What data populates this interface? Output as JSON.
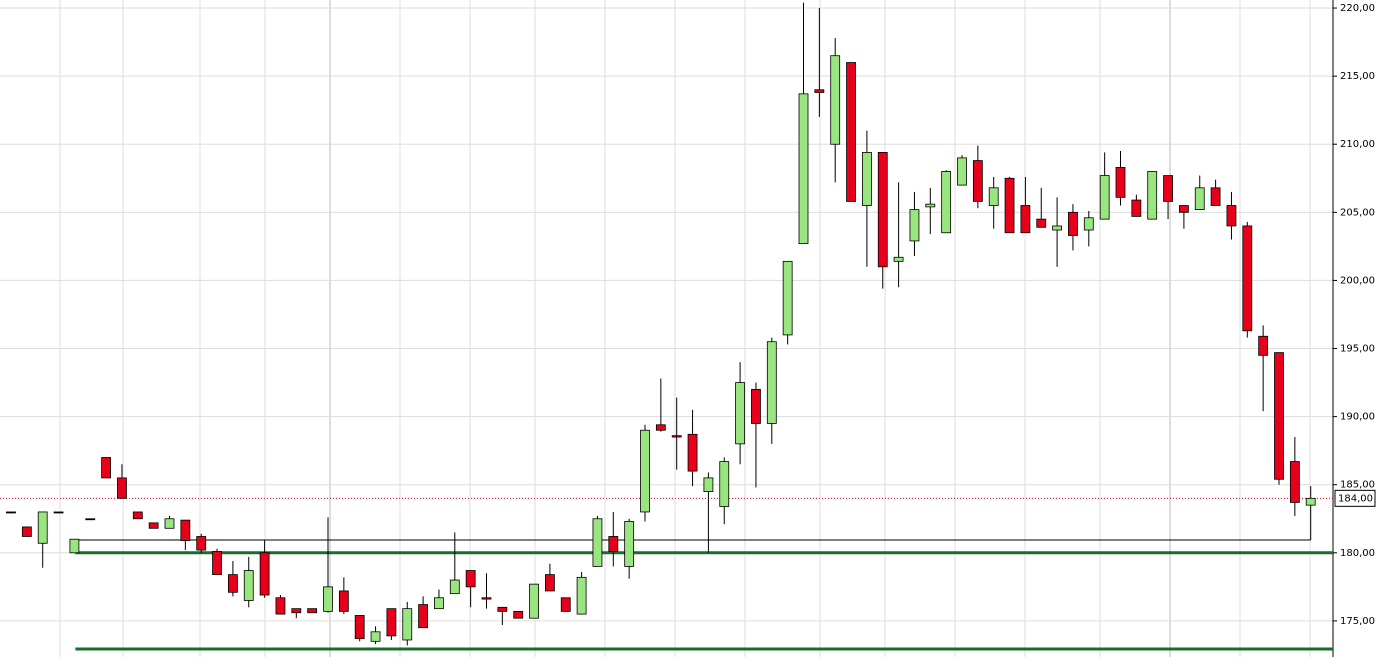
{
  "chart_data": {
    "type": "candlestick",
    "open": [
      183.0,
      181.9,
      180.7,
      183.0,
      180.0,
      182.5,
      187.0,
      185.5,
      183.0,
      182.2,
      181.8,
      182.4,
      181.2,
      180.1,
      178.4,
      176.5,
      180.0,
      176.7,
      175.9,
      175.9,
      175.7,
      177.2,
      175.4,
      173.5,
      175.9,
      173.6,
      176.2,
      175.9,
      177.0,
      178.7,
      176.7,
      176.0,
      175.7,
      175.2,
      178.4,
      176.7,
      175.5,
      179.0,
      181.2,
      179.0,
      183.0,
      189.4,
      188.6,
      188.7,
      184.5,
      183.4,
      188.0,
      192.0,
      189.5,
      196.0,
      202.7,
      214.0,
      210.0,
      216.0,
      205.5,
      209.4,
      201.4,
      202.9,
      205.4,
      203.5,
      207.0,
      208.8,
      205.5,
      207.5,
      205.5,
      204.5,
      203.7,
      205.0,
      203.7,
      204.5,
      208.3,
      205.9,
      204.5,
      207.7,
      205.5,
      205.2,
      206.8,
      205.5,
      204.0,
      195.9,
      194.7,
      186.7,
      183.5
    ],
    "high": [
      183.0,
      181.9,
      183.0,
      183.0,
      181.0,
      182.5,
      187.0,
      186.5,
      183.0,
      182.2,
      182.7,
      182.4,
      181.4,
      180.3,
      179.4,
      179.7,
      180.9,
      176.9,
      175.9,
      175.9,
      182.6,
      178.2,
      175.4,
      174.6,
      175.9,
      176.4,
      176.8,
      177.3,
      181.5,
      178.7,
      178.5,
      176.0,
      175.7,
      177.7,
      179.2,
      176.7,
      178.6,
      182.7,
      183.0,
      182.5,
      189.4,
      192.8,
      191.4,
      190.5,
      185.9,
      187.0,
      194.0,
      192.5,
      195.8,
      201.4,
      220.4,
      220.0,
      217.8,
      216.0,
      211.0,
      209.4,
      207.2,
      206.5,
      206.8,
      208.1,
      209.2,
      209.9,
      207.6,
      207.6,
      207.6,
      206.8,
      206.1,
      205.6,
      205.1,
      209.4,
      209.5,
      206.3,
      208.0,
      207.7,
      205.5,
      207.7,
      207.4,
      206.5,
      204.3,
      196.7,
      194.7,
      188.5,
      184.9
    ],
    "low": [
      183.0,
      181.2,
      178.9,
      183.0,
      180.0,
      182.5,
      185.5,
      184.0,
      182.5,
      181.8,
      181.8,
      180.2,
      180.0,
      178.4,
      176.8,
      176.0,
      176.7,
      175.5,
      175.2,
      175.6,
      175.6,
      175.5,
      173.5,
      173.3,
      173.6,
      173.2,
      174.5,
      175.9,
      177.0,
      176.0,
      175.9,
      174.7,
      175.2,
      175.2,
      177.2,
      175.7,
      175.5,
      179.0,
      179.0,
      178.1,
      182.3,
      188.9,
      186.1,
      184.9,
      180.0,
      182.1,
      186.5,
      184.8,
      188.0,
      195.3,
      202.7,
      212.0,
      207.2,
      205.8,
      201.0,
      199.4,
      199.5,
      201.8,
      203.4,
      203.5,
      207.0,
      205.3,
      203.8,
      203.5,
      203.5,
      203.9,
      201.0,
      202.2,
      202.5,
      204.5,
      205.5,
      204.7,
      204.5,
      204.5,
      203.8,
      205.2,
      205.5,
      203.0,
      195.8,
      190.4,
      185.0,
      182.7,
      183.5
    ],
    "close": [
      183.0,
      181.2,
      183.0,
      183.0,
      181.0,
      182.5,
      185.5,
      184.0,
      182.5,
      181.8,
      182.5,
      180.9,
      180.2,
      178.4,
      177.1,
      178.7,
      176.9,
      175.5,
      175.6,
      175.6,
      177.5,
      175.7,
      173.7,
      174.2,
      173.9,
      175.9,
      174.5,
      176.7,
      178.0,
      177.5,
      176.6,
      175.7,
      175.2,
      177.7,
      177.2,
      175.7,
      178.2,
      182.5,
      180.1,
      182.3,
      189.0,
      189.0,
      188.5,
      186.0,
      185.5,
      186.7,
      192.5,
      189.5,
      195.5,
      201.4,
      213.7,
      213.8,
      216.5,
      205.8,
      209.4,
      201.0,
      201.7,
      205.2,
      205.6,
      208.0,
      209.0,
      205.8,
      206.8,
      203.5,
      203.5,
      203.9,
      204.0,
      203.3,
      204.6,
      207.7,
      206.1,
      204.7,
      208.0,
      205.8,
      205.0,
      206.8,
      205.5,
      204.0,
      196.3,
      194.5,
      185.4,
      183.7,
      184.0
    ],
    "up_color": "#99e57f",
    "down_color": "#e8001a",
    "ylim": [
      172.35,
      220.59
    ],
    "yticks": [
      {
        "value": 175,
        "label": "175,00"
      },
      {
        "value": 180,
        "label": "180,00"
      },
      {
        "value": 185,
        "label": "185,00"
      },
      {
        "value": 190,
        "label": "190,00"
      },
      {
        "value": 195,
        "label": "195,00"
      },
      {
        "value": 200,
        "label": "200,00"
      },
      {
        "value": 205,
        "label": "205,00"
      },
      {
        "value": 210,
        "label": "210,00"
      },
      {
        "value": 215,
        "label": "215,00"
      },
      {
        "value": 220,
        "label": "220,00"
      }
    ],
    "grid": true,
    "last_price": {
      "value": 184,
      "label": "184,00"
    },
    "levels": [
      {
        "value": 180,
        "color": "#1a6b2e"
      },
      {
        "value": 172.94,
        "color": "#1a6b2e"
      },
      {
        "value": 180.94,
        "color": "#000000"
      }
    ]
  }
}
